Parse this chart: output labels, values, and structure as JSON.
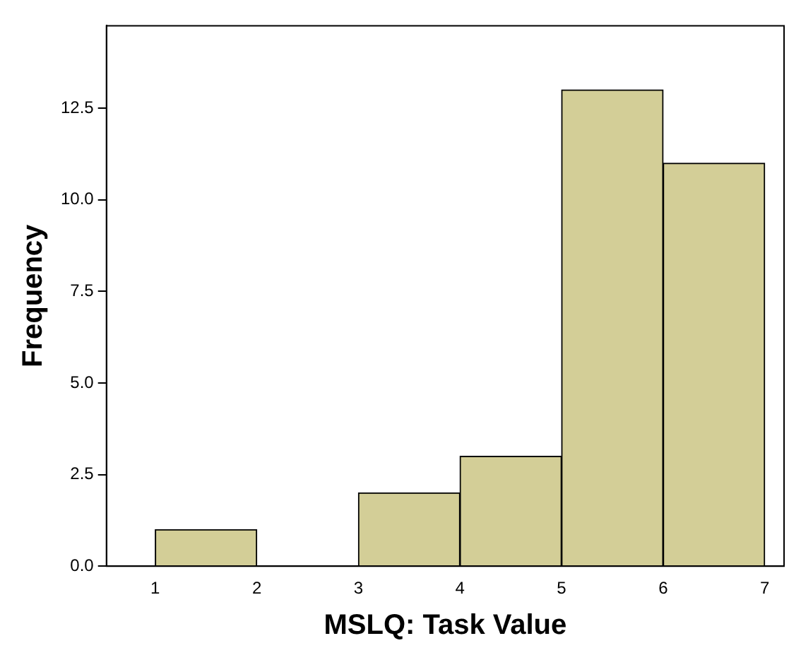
{
  "chart_data": {
    "type": "histogram",
    "xlabel": "MSLQ: Task Value",
    "ylabel": "Frequency",
    "bins": [
      1,
      2,
      3,
      4,
      5,
      6,
      7
    ],
    "values": [
      1,
      0,
      2,
      3,
      13,
      11
    ],
    "color": "#d3ce97",
    "xlim": [
      0.52,
      7.19
    ],
    "xticks": [
      1,
      2,
      3,
      4,
      5,
      6,
      7
    ],
    "ylim": [
      0,
      14.75
    ],
    "yticks": [
      {
        "value": 0,
        "label": "0.0"
      },
      {
        "value": 2.5,
        "label": "2.5"
      },
      {
        "value": 5,
        "label": "5.0"
      },
      {
        "value": 7.5,
        "label": "7.5"
      },
      {
        "value": 10,
        "label": "10.0"
      },
      {
        "value": 12.5,
        "label": "12.5"
      }
    ],
    "grid": false,
    "legend": false
  }
}
